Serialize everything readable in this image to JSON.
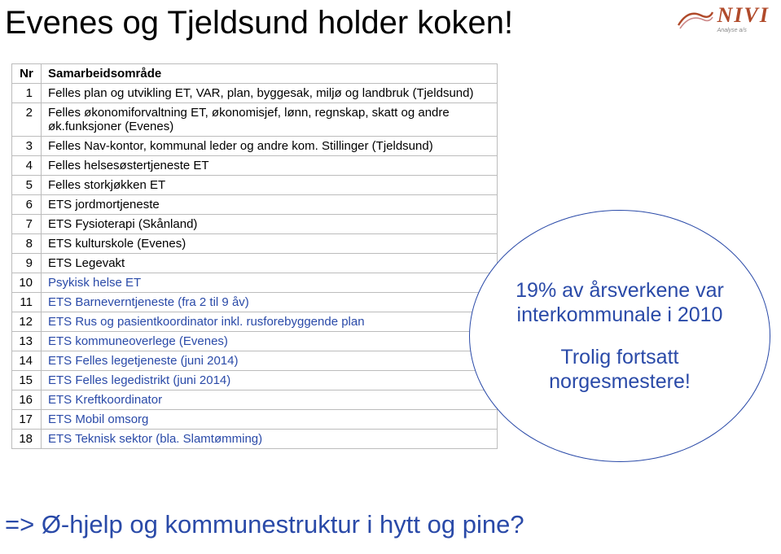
{
  "title": "Evenes og Tjeldsund holder koken!",
  "logo": {
    "text": "NIVI",
    "sub": "Analyse a/s"
  },
  "table": {
    "headers": {
      "nr": "Nr",
      "desc": "Samarbeidsområde"
    },
    "rows": [
      {
        "nr": "1",
        "desc": "Felles plan og utvikling ET, VAR, plan, byggesak, miljø og landbruk (Tjeldsund)",
        "style": "black"
      },
      {
        "nr": "2",
        "desc": "Felles økonomiforvaltning ET, økonomisjef, lønn, regnskap, skatt og andre øk.funksjoner (Evenes)",
        "style": "black"
      },
      {
        "nr": "3",
        "desc": "Felles Nav-kontor, kommunal leder og andre kom. Stillinger (Tjeldsund)",
        "style": "black"
      },
      {
        "nr": "4",
        "desc": "Felles helsesøstertjeneste ET",
        "style": "black"
      },
      {
        "nr": "5",
        "desc": "Felles storkjøkken ET",
        "style": "black"
      },
      {
        "nr": "6",
        "desc": "ETS jordmortjeneste",
        "style": "black"
      },
      {
        "nr": "7",
        "desc": "ETS Fysioterapi (Skånland)",
        "style": "black"
      },
      {
        "nr": "8",
        "desc": "ETS kulturskole (Evenes)",
        "style": "black"
      },
      {
        "nr": "9",
        "desc": "ETS Legevakt",
        "style": "black"
      },
      {
        "nr": "10",
        "desc": "Psykisk helse ET",
        "style": "blue"
      },
      {
        "nr": "11",
        "desc": "ETS Barneverntjeneste (fra 2 til 9 åv)",
        "style": "blue"
      },
      {
        "nr": "12",
        "desc": "ETS Rus og pasientkoordinator inkl. rusforebyggende plan",
        "style": "blue"
      },
      {
        "nr": "13",
        "desc": "ETS kommuneoverlege (Evenes)",
        "style": "blue"
      },
      {
        "nr": "14",
        "desc": "ETS Felles legetjeneste (juni 2014)",
        "style": "blue"
      },
      {
        "nr": "15",
        "desc": "ETS Felles legedistrikt (juni 2014)",
        "style": "blue"
      },
      {
        "nr": "16",
        "desc": "ETS Kreftkoordinator",
        "style": "blue"
      },
      {
        "nr": "17",
        "desc": "ETS Mobil omsorg",
        "style": "blue"
      },
      {
        "nr": "18",
        "desc": "ETS Teknisk sektor (bla. Slamtømming)",
        "style": "blue"
      }
    ]
  },
  "bubble": {
    "line1": "19% av årsverkene var",
    "line2": "interkommunale i 2010",
    "line3": "Trolig fortsatt",
    "line4": "norgesmestere!"
  },
  "footer": "=> Ø-hjelp og kommunestruktur i hytt og pine?",
  "colors": {
    "blue": "#2a4aa8",
    "logo": "#b04a2a",
    "border": "#bcbcbc"
  },
  "fontsizes": {
    "title": 40,
    "table": 15,
    "bubble": 25,
    "footer": 31
  }
}
